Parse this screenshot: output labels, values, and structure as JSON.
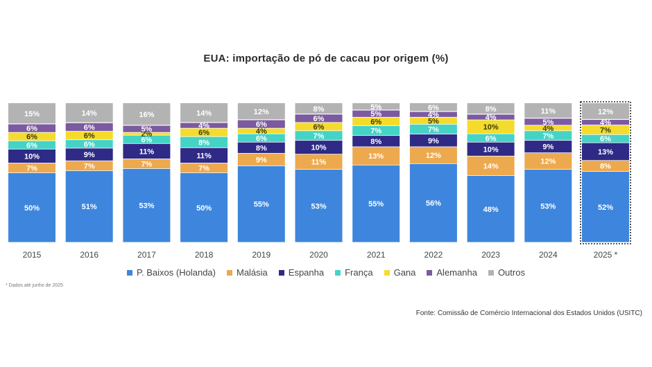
{
  "chart_data": {
    "type": "bar",
    "stacked": true,
    "title": "EUA: importação de pó de cacau por origem (%)",
    "categories": [
      "2015",
      "2016",
      "2017",
      "2018",
      "2019",
      "2020",
      "2021",
      "2022",
      "2023",
      "2024",
      "2025 *"
    ],
    "highlight_category": "2025 *",
    "ylim": [
      0,
      100
    ],
    "legend_position": "bottom",
    "series": [
      {
        "name": "P. Baixos (Holanda)",
        "color": "#3e86dd",
        "values": [
          50,
          51,
          53,
          50,
          55,
          53,
          55,
          56,
          48,
          53,
          52
        ]
      },
      {
        "name": "Malásia",
        "color": "#eda94e",
        "values": [
          7,
          7,
          7,
          7,
          9,
          11,
          13,
          12,
          14,
          12,
          8
        ]
      },
      {
        "name": "Espanha",
        "color": "#2e2a86",
        "values": [
          10,
          9,
          11,
          11,
          8,
          10,
          8,
          9,
          10,
          9,
          13
        ]
      },
      {
        "name": "França",
        "color": "#45d3c6",
        "values": [
          6,
          6,
          6,
          8,
          6,
          7,
          7,
          7,
          6,
          7,
          6
        ]
      },
      {
        "name": "Gana",
        "color": "#f5dc2c",
        "values": [
          6,
          6,
          2,
          6,
          4,
          6,
          6,
          5,
          10,
          4,
          7
        ]
      },
      {
        "name": "Alemanha",
        "color": "#7b5aa0",
        "values": [
          6,
          6,
          5,
          4,
          6,
          6,
          5,
          4,
          4,
          5,
          4
        ]
      },
      {
        "name": "Outros",
        "color": "#b3b3b3",
        "values": [
          15,
          14,
          16,
          14,
          12,
          8,
          5,
          6,
          8,
          11,
          12
        ]
      }
    ],
    "labels": [
      [
        "50%",
        "51%",
        "53%",
        "50%",
        "55%",
        "53%",
        "55%",
        "56%",
        "48%",
        "53%",
        "52%"
      ],
      [
        "7%",
        "7%",
        "7%",
        "7%",
        "9%",
        "11%",
        "13%",
        "12%",
        "14%",
        "12%",
        "8%"
      ],
      [
        "10%",
        "9%",
        "11%",
        "11%",
        "8%",
        "10%",
        "8%",
        "9%",
        "10%",
        "9%",
        "13%"
      ],
      [
        "6%",
        "6%",
        "6%",
        "8%",
        "6%",
        "7%",
        "7%",
        "7%",
        "6%",
        "7%",
        "6%"
      ],
      [
        "6%",
        "6%",
        "2%",
        "6%",
        "4%",
        "6%",
        "6%",
        "5%",
        "10%",
        "4%",
        "7%"
      ],
      [
        "6%",
        "6%",
        "5%",
        "4%",
        "6%",
        "6%",
        "5%",
        "4%",
        "4%",
        "5%",
        "4%"
      ],
      [
        "15%",
        "14%",
        "16%",
        "14%",
        "12%",
        "8%",
        "5%",
        "6%",
        "8%",
        "11%",
        "12%"
      ]
    ]
  },
  "footnote": "* Dados até junho de 2025",
  "source": "Fonte: Comissão de Comércio Internacional dos Estados Unidos (USITC)"
}
